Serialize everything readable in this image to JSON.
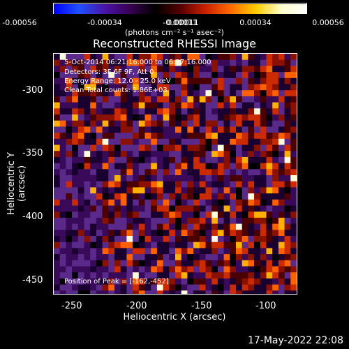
{
  "colorbar": {
    "ticks": [
      "-0.00056",
      "-0.00034",
      "-0.00011",
      "0.00011",
      "0.00034",
      "0.00056"
    ],
    "units": "(photons cm⁻² s⁻¹ asec⁻²)",
    "colors": [
      "#0000ff",
      "#2050ff",
      "#4a14a8",
      "#3a0055",
      "#000000",
      "#550000",
      "#cc2000",
      "#ff6a00",
      "#ffcc00",
      "#ffffcc",
      "#ffffff"
    ]
  },
  "title": "Reconstructed RHESSI Image",
  "info": {
    "time_range": "5-Oct-2014 06:21:16.000 to 06:27:16.000",
    "detectors": "Detectors: 3F 6F 9F, Att 0",
    "energy": "Energy Range: 12.0 - 25.0 keV",
    "clean": "Clean     Total counts: 1.86E+03",
    "peak": "Position of Peak = [-162,-452]"
  },
  "axes": {
    "xlabel": "Heliocentric X (arcsec)",
    "ylabel": "Heliocentric Y (arcsec)",
    "xticks": [
      "-250",
      "-200",
      "-150",
      "-100"
    ],
    "yticks": [
      "-300",
      "-350",
      "-400",
      "-450"
    ]
  },
  "timestamp": "17-May-2022 22:08",
  "image": {
    "palette": [
      "#000000",
      "#1a0030",
      "#3a0a5a",
      "#5a2a8a",
      "#4a0000",
      "#8a1000",
      "#cc2a00",
      "#ff6000",
      "#ffb000",
      "#ffffe0"
    ]
  }
}
